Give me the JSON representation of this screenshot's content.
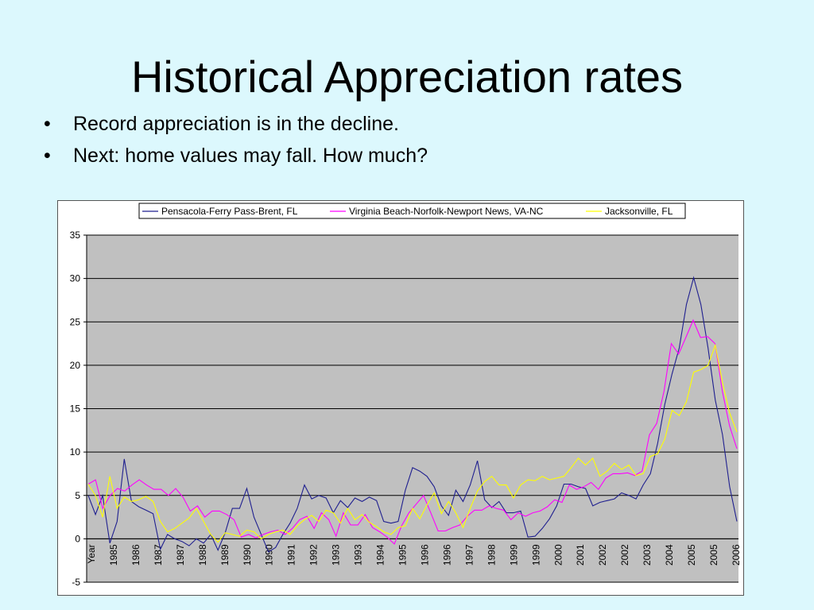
{
  "slide": {
    "title": "Historical Appreciation rates",
    "bullets": [
      "Record appreciation is in the decline.",
      "Next: home values may fall.  How much?"
    ]
  },
  "colors": {
    "background": "#dcf8fd",
    "plot_area": "#c0c0c0"
  },
  "chart_data": {
    "type": "line",
    "title": "",
    "ylim": [
      -5,
      35
    ],
    "yticks": [
      -5,
      0,
      5,
      10,
      15,
      20,
      25,
      30,
      35
    ],
    "grid": true,
    "legend_position": "top",
    "x_tick_labels": [
      "Year",
      "1985",
      "1986",
      "1987",
      "1987",
      "1988",
      "1989",
      "1990",
      "1990",
      "1991",
      "1992",
      "1993",
      "1993",
      "1994",
      "1995",
      "1996",
      "1996",
      "1997",
      "1998",
      "1999",
      "1999",
      "2000",
      "2001",
      "2002",
      "2002",
      "2003",
      "2004",
      "2005",
      "2005",
      "2006"
    ],
    "series": [
      {
        "name": "Pensacola-Ferry Pass-Brent, FL",
        "color": "#1f1f8f",
        "values": [
          5,
          2.8,
          5,
          -0.5,
          2,
          9.2,
          4.3,
          3.7,
          3.3,
          2.9,
          -1.2,
          0.5,
          0,
          -0.3,
          -0.8,
          0,
          -0.5,
          0.5,
          -1.3,
          0.7,
          3.5,
          3.5,
          5.8,
          2.5,
          0.5,
          -1.5,
          -1,
          0.5,
          1.8,
          3.5,
          6.2,
          4.6,
          5,
          4.7,
          3,
          4.4,
          3.6,
          4.7,
          4.3,
          4.8,
          4.4,
          2,
          1.8,
          2,
          5.6,
          8.2,
          7.8,
          7.2,
          6,
          3.8,
          2.7,
          5.6,
          4.3,
          6.2,
          9,
          4.5,
          3.6,
          4.3,
          3,
          3,
          3.2,
          0.2,
          0.3,
          1.2,
          2.3,
          3.8,
          6.3,
          6.3,
          6,
          5.8,
          3.8,
          4.2,
          4.4,
          4.6,
          5.3,
          5,
          4.6,
          6.2,
          7.5,
          11,
          15.5,
          19,
          22,
          27,
          30.1,
          27,
          22,
          16,
          12,
          6,
          2
        ]
      },
      {
        "name": "Virginia Beach-Norfolk-Newport News, VA-NC",
        "color": "#ff00ff",
        "values": [
          6.3,
          6.8,
          3.5,
          5,
          5.8,
          5.5,
          6.2,
          6.8,
          6.2,
          5.7,
          5.7,
          5,
          5.8,
          4.8,
          3.2,
          3.8,
          2.5,
          3.2,
          3.2,
          2.8,
          2.2,
          0.2,
          0.5,
          0.1,
          0.5,
          0.8,
          1,
          0.5,
          1.2,
          2.2,
          2.6,
          1.2,
          3,
          2.2,
          0.3,
          3,
          1.6,
          1.6,
          2.8,
          1.3,
          0.8,
          0.2,
          -0.6,
          1.5,
          3,
          4,
          5,
          3,
          0.9,
          0.9,
          1.3,
          1.6,
          2.6,
          3.3,
          3.3,
          3.8,
          3.5,
          3.3,
          2.2,
          3,
          2.6,
          3,
          3.2,
          3.7,
          4.5,
          4.2,
          6.2,
          5.7,
          6,
          6.5,
          5.7,
          7,
          7.5,
          7.5,
          7.6,
          7.3,
          7.8,
          12,
          13.3,
          17,
          22.5,
          21.3,
          23.2,
          25.2,
          23.2,
          23.3,
          22.5,
          17,
          13,
          10.4
        ]
      },
      {
        "name": "Jacksonville, FL",
        "color": "#ffff00",
        "values": [
          6.3,
          5,
          2.5,
          7.2,
          3.5,
          4.8,
          4.3,
          4.5,
          4.9,
          4.3,
          2,
          0.8,
          1.2,
          1.8,
          2.4,
          3.5,
          2,
          0.5,
          -0.4,
          0.7,
          0.5,
          0.3,
          1,
          0.8,
          0,
          0.5,
          0.8,
          1,
          0.5,
          1.5,
          2.2,
          2.7,
          2,
          3.3,
          3,
          1.8,
          3.5,
          2.2,
          2.8,
          1.9,
          1.4,
          0.8,
          0.5,
          1.3,
          1.5,
          3.5,
          2.3,
          3.9,
          5.3,
          2.9,
          4.3,
          3,
          1.3,
          3.5,
          5.5,
          6.6,
          7.2,
          6.2,
          6.2,
          4.7,
          6.2,
          6.8,
          6.7,
          7.2,
          6.8,
          7,
          7.2,
          8.2,
          9.3,
          8.5,
          9.3,
          7.2,
          7.8,
          8.7,
          8,
          8.5,
          7.3,
          7.5,
          9.5,
          9.8,
          11.5,
          14.8,
          14.2,
          15.8,
          19.2,
          19.5,
          20,
          22.3,
          18,
          14.5,
          12.3
        ]
      }
    ]
  }
}
